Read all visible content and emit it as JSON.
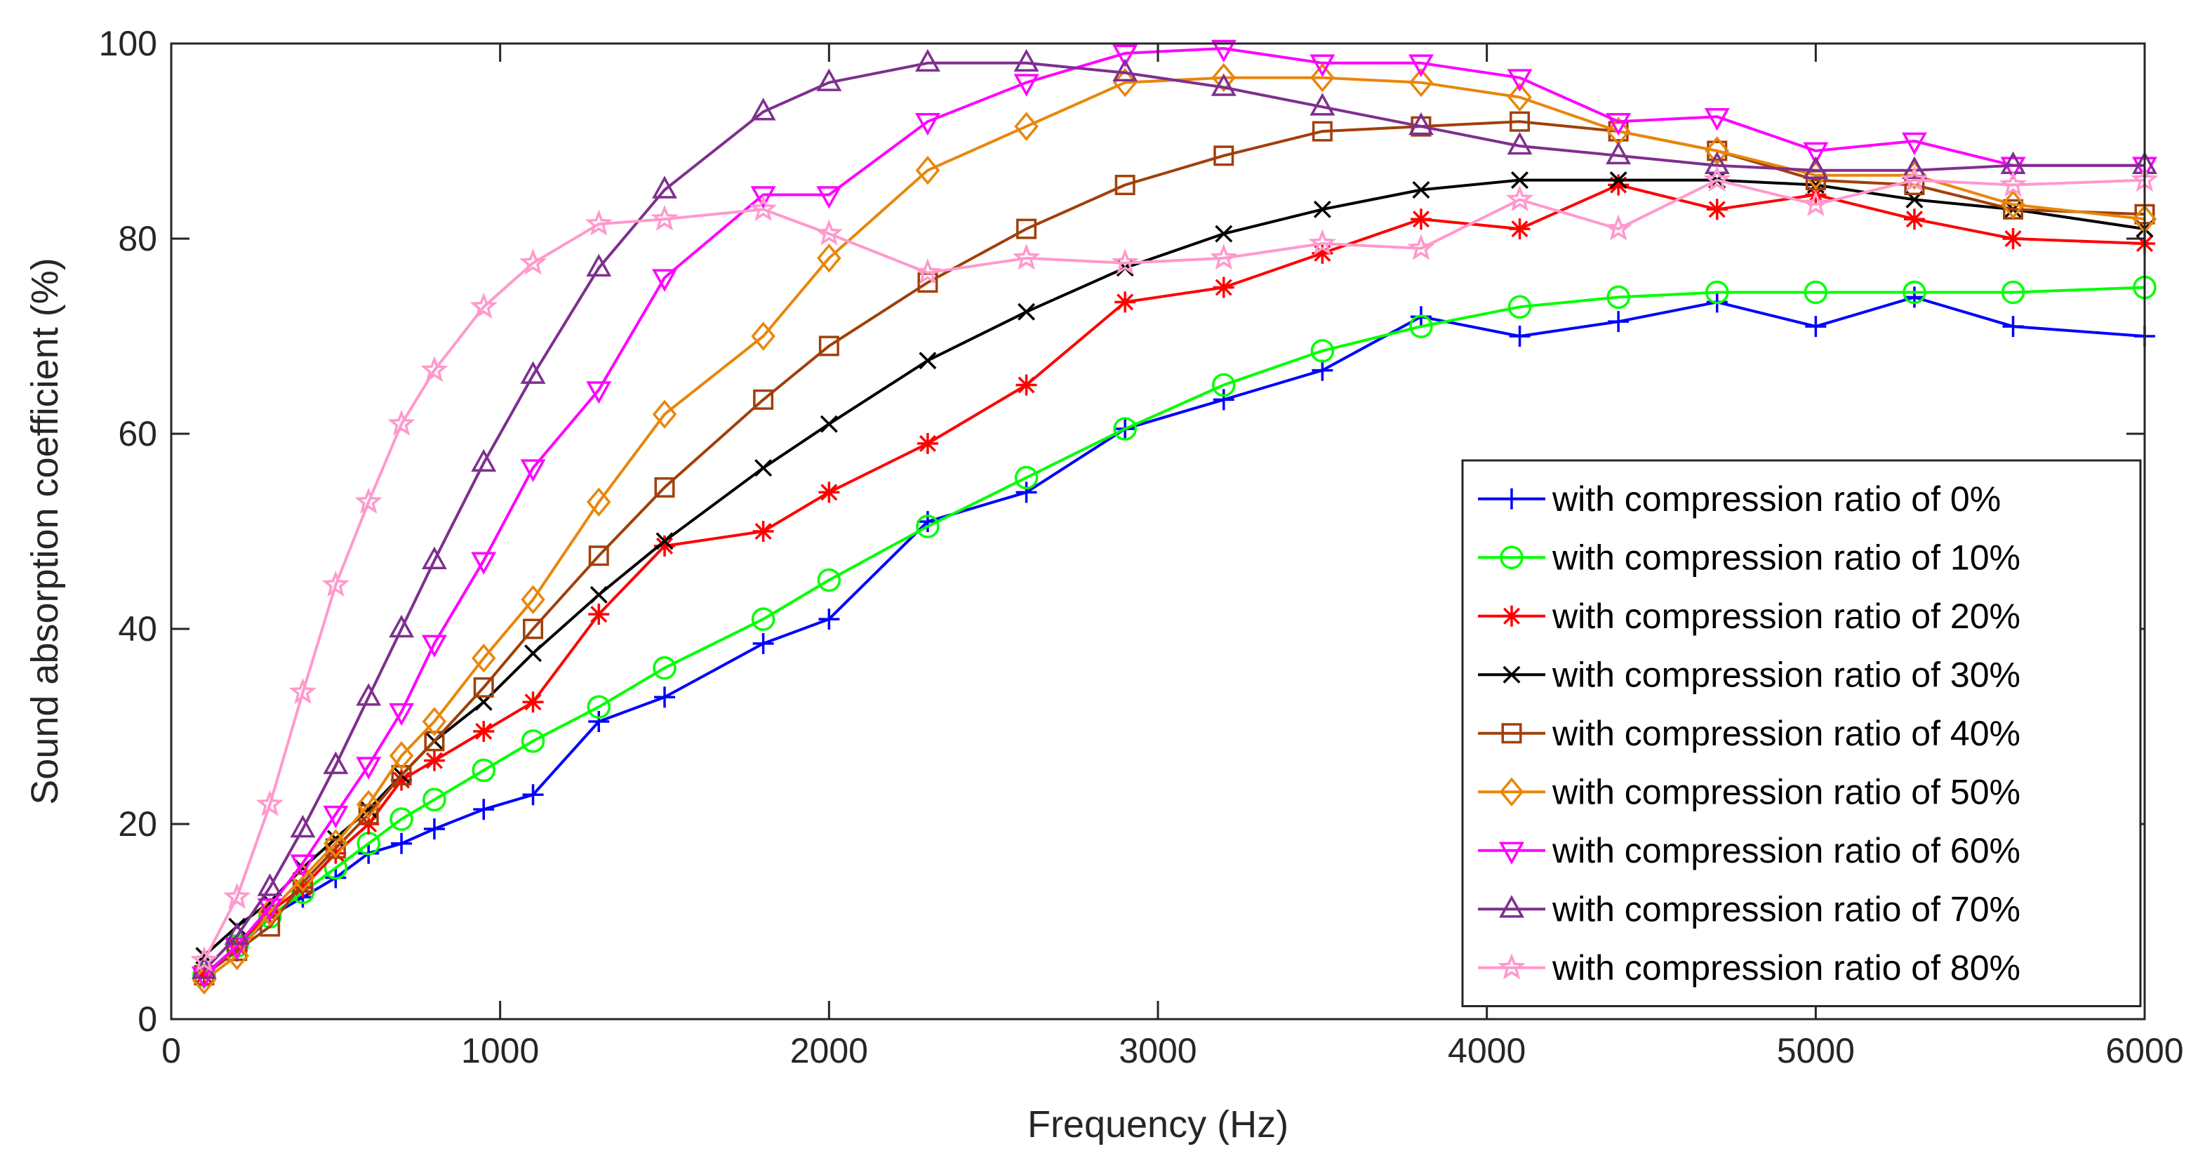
{
  "chart_data": {
    "type": "line",
    "title": "",
    "xlabel": "Frequency (Hz)",
    "ylabel": "Sound absorption coefficient (%)",
    "xlim": [
      0,
      6000
    ],
    "ylim": [
      0,
      100
    ],
    "xticks": [
      0,
      1000,
      2000,
      3000,
      4000,
      5000,
      6000
    ],
    "yticks": [
      0,
      20,
      40,
      60,
      80,
      100
    ],
    "grid": false,
    "legend_position": "bottom-right",
    "x": [
      100,
      200,
      300,
      400,
      500,
      600,
      700,
      800,
      950,
      1100,
      1300,
      1500,
      1800,
      2000,
      2300,
      2600,
      2900,
      3200,
      3500,
      3800,
      4100,
      4400,
      4700,
      5000,
      5300,
      5600,
      6000
    ],
    "series": [
      {
        "name": "with compression ratio of 0%",
        "color": "#0000FF",
        "marker": "plus",
        "values": [
          4.5,
          7,
          10.5,
          12.5,
          14.5,
          17,
          18,
          19.5,
          21.5,
          23,
          30.5,
          33,
          38.5,
          41,
          51,
          54,
          60.5,
          63.5,
          66.5,
          72,
          70,
          71.5,
          73.5,
          71,
          74,
          71,
          70
        ]
      },
      {
        "name": "with compression ratio of 10%",
        "color": "#00FF00",
        "marker": "circle",
        "values": [
          4.5,
          7.5,
          10.5,
          13,
          15.5,
          18,
          20.5,
          22.5,
          25.5,
          28.5,
          32,
          36,
          41,
          45,
          50.5,
          55.5,
          60.5,
          65,
          68.5,
          71,
          73,
          74,
          74.5,
          74.5,
          74.5,
          74.5,
          75
        ]
      },
      {
        "name": "with compression ratio of 20%",
        "color": "#FF0000",
        "marker": "asterisk",
        "values": [
          4.5,
          7.5,
          11,
          13.5,
          17,
          20,
          24.5,
          26.5,
          29.5,
          32.5,
          41.5,
          48.5,
          50,
          54,
          59,
          65,
          73.5,
          75,
          78.5,
          82,
          81,
          85.5,
          83,
          84.5,
          82,
          80,
          79.5
        ]
      },
      {
        "name": "with compression ratio of 30%",
        "color": "#000000",
        "marker": "cross",
        "values": [
          6.5,
          9.5,
          12,
          15.5,
          18.5,
          21.5,
          25,
          28.5,
          32.5,
          37.5,
          43.5,
          49,
          56.5,
          61,
          67.5,
          72.5,
          77,
          80.5,
          83,
          85,
          86,
          86,
          86,
          85.5,
          84,
          83,
          81
        ]
      },
      {
        "name": "with compression ratio of 40%",
        "color": "#A0400A",
        "marker": "square",
        "values": [
          4.5,
          7,
          9.5,
          14,
          17.5,
          21,
          25,
          28.5,
          34,
          40,
          47.5,
          54.5,
          63.5,
          69,
          75.5,
          81,
          85.5,
          88.5,
          91,
          91.5,
          92,
          91,
          89,
          86,
          85.5,
          83,
          82.5
        ]
      },
      {
        "name": "with compression ratio of 50%",
        "color": "#E8860A",
        "marker": "diamond",
        "values": [
          4,
          6.5,
          11,
          14.5,
          18,
          22,
          27,
          30.5,
          37,
          43,
          53,
          62,
          70,
          78,
          87,
          91.5,
          96,
          96.5,
          96.5,
          96,
          94.5,
          91,
          89,
          86.5,
          86.5,
          83.5,
          82
        ]
      },
      {
        "name": "with compression ratio of 60%",
        "color": "#FF00FF",
        "marker": "triangle-down",
        "values": [
          4.5,
          7.5,
          11.5,
          16,
          21,
          26,
          31.5,
          38.5,
          47,
          56.5,
          64.5,
          76,
          84.5,
          84.5,
          92,
          96,
          99,
          99.5,
          98,
          98,
          96.5,
          92,
          92.5,
          89,
          90,
          87.5,
          87.5
        ]
      },
      {
        "name": "with compression ratio of 70%",
        "color": "#7E2F8E",
        "marker": "triangle-up",
        "values": [
          5,
          8.5,
          13.5,
          19.5,
          26,
          33,
          40,
          47,
          57,
          66,
          77,
          85,
          93,
          96,
          98,
          98,
          97,
          95.5,
          93.5,
          91.5,
          89.5,
          88.5,
          87.5,
          87,
          87,
          87.5,
          87.5
        ]
      },
      {
        "name": "with compression ratio of 80%",
        "color": "#FF99CC",
        "marker": "star",
        "values": [
          6,
          12.5,
          22,
          33.5,
          44.5,
          53,
          61,
          66.5,
          73,
          77.5,
          81.5,
          82,
          83,
          80.5,
          76.5,
          78,
          77.5,
          78,
          79.5,
          79,
          84,
          81,
          86,
          83.5,
          86,
          85.5,
          86
        ]
      }
    ]
  }
}
